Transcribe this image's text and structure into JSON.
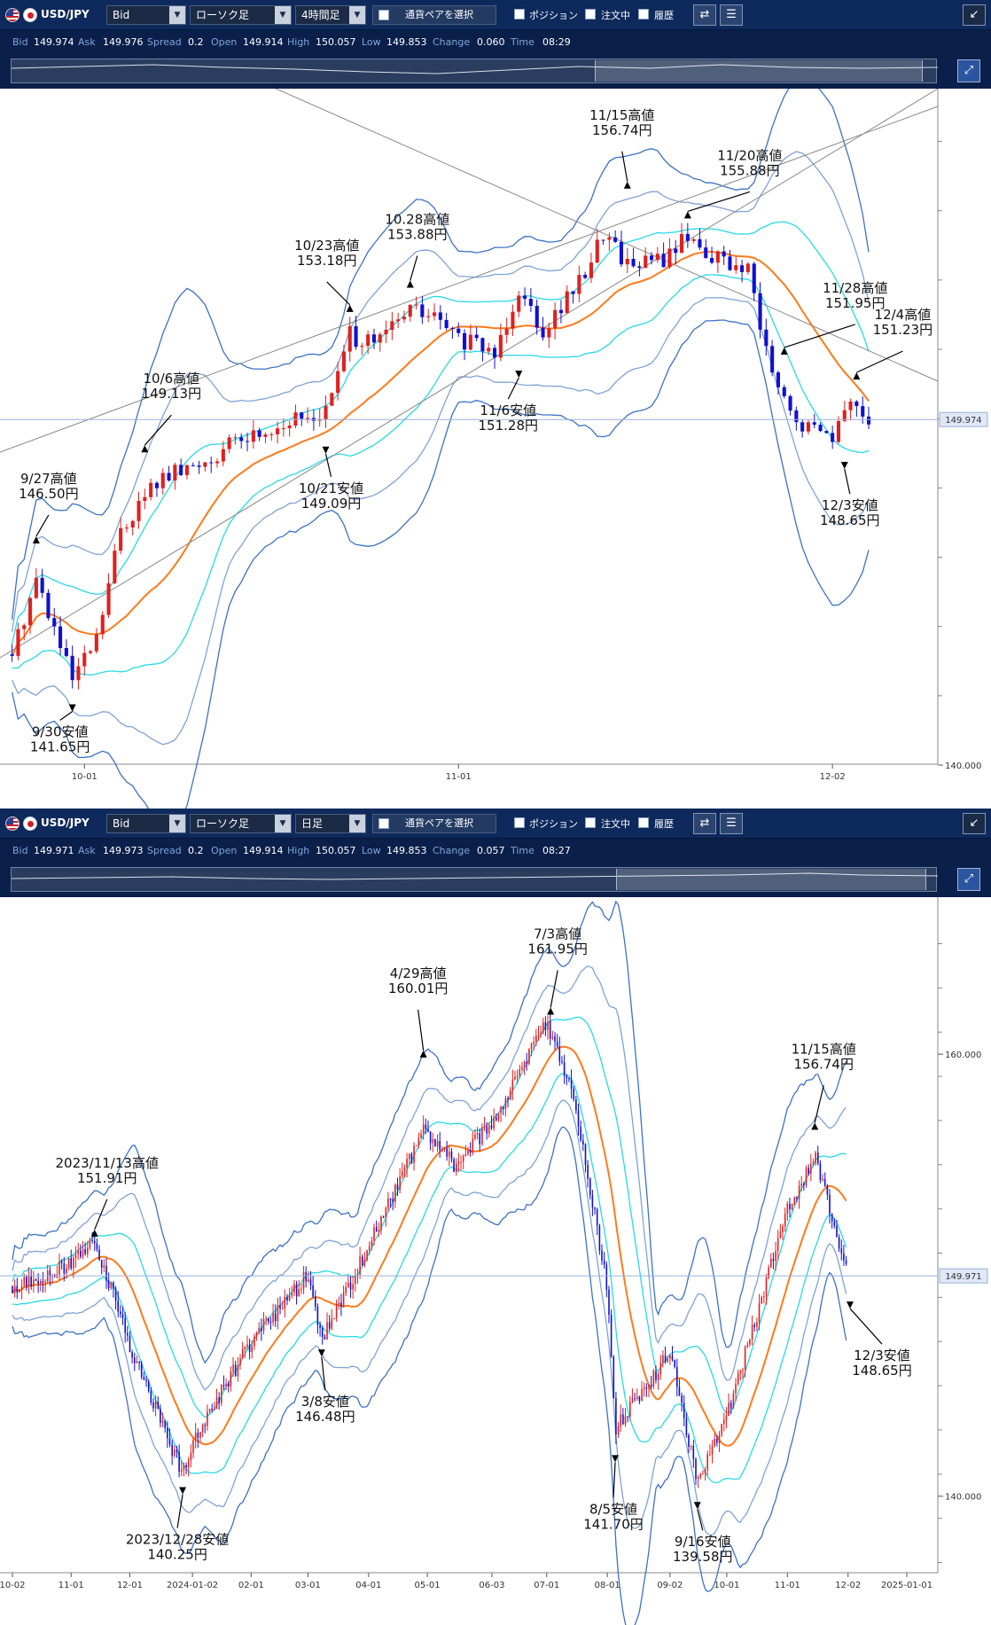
{
  "panels": [
    {
      "toolbar": {
        "pair": "USD/JPY",
        "price_type": "Bid",
        "chart_style": "ローソク足",
        "timeframe": "4時間足",
        "select_pair_label": "通貨ペアを選択",
        "position_label": "ポジション",
        "order_label": "注文中",
        "history_label": "履歴"
      },
      "quote": {
        "bid_label": "Bid",
        "bid": "149.974",
        "ask_label": "Ask",
        "ask": "149.976",
        "spread_label": "Spread",
        "spread": "0.2",
        "open_label": "Open",
        "open": "149.914",
        "high_label": "High",
        "high": "150.057",
        "low_label": "Low",
        "low": "149.853",
        "change_label": "Change",
        "change": "0.060",
        "time_label": "Time",
        "time": "08:29"
      },
      "current_price_label": "149.974",
      "chart_data": {
        "type": "candlestick",
        "title": "",
        "x_ticks": [
          "10-01",
          "11-01",
          "12-02"
        ],
        "y_ticks": [
          "140.000"
        ],
        "ylim": [
          140.0,
          158.5
        ],
        "overlays": [
          "20-period moving average",
          "Bollinger Bands ±1σ/±2σ/±3σ",
          "trend lines"
        ],
        "current_price": 149.974,
        "series_close_approx": [
          {
            "date": "09-25",
            "value": 143.2
          },
          {
            "date": "09-27",
            "value": 145.4
          },
          {
            "date": "09-30",
            "value": 142.4
          },
          {
            "date": "10-02",
            "value": 143.6
          },
          {
            "date": "10-04",
            "value": 146.8
          },
          {
            "date": "10-07",
            "value": 148.2
          },
          {
            "date": "10-10",
            "value": 148.6
          },
          {
            "date": "10-14",
            "value": 149.4
          },
          {
            "date": "10-17",
            "value": 149.8
          },
          {
            "date": "10-21",
            "value": 150.2
          },
          {
            "date": "10-23",
            "value": 152.4
          },
          {
            "date": "10-25",
            "value": 152.1
          },
          {
            "date": "10-28",
            "value": 153.2
          },
          {
            "date": "10-30",
            "value": 152.9
          },
          {
            "date": "11-01",
            "value": 152.3
          },
          {
            "date": "11-04",
            "value": 151.9
          },
          {
            "date": "11-06",
            "value": 153.8
          },
          {
            "date": "11-08",
            "value": 152.6
          },
          {
            "date": "11-11",
            "value": 153.9
          },
          {
            "date": "11-13",
            "value": 155.4
          },
          {
            "date": "11-15",
            "value": 154.5
          },
          {
            "date": "11-18",
            "value": 154.6
          },
          {
            "date": "11-20",
            "value": 155.3
          },
          {
            "date": "11-22",
            "value": 154.7
          },
          {
            "date": "11-25",
            "value": 154.2
          },
          {
            "date": "11-27",
            "value": 151.2
          },
          {
            "date": "11-29",
            "value": 149.8
          },
          {
            "date": "12-02",
            "value": 149.6
          },
          {
            "date": "12-04",
            "value": 150.6
          },
          {
            "date": "12-05",
            "value": 149.97
          }
        ],
        "annotations": [
          {
            "date": "09-27",
            "line1": "9/27高値",
            "line2": "146.50円",
            "value": 146.5
          },
          {
            "date": "09-30",
            "line1": "9/30安値",
            "line2": "141.65円",
            "value": 141.65
          },
          {
            "date": "10-06",
            "line1": "10/6高値",
            "line2": "149.13円",
            "value": 149.13
          },
          {
            "date": "10-21",
            "line1": "10/21安値",
            "line2": "149.09円",
            "value": 149.09
          },
          {
            "date": "10-23",
            "line1": "10/23高値",
            "line2": "153.18円",
            "value": 153.18
          },
          {
            "date": "10-28",
            "line1": "10.28高値",
            "line2": "153.88円",
            "value": 153.88
          },
          {
            "date": "11-06",
            "line1": "11/6安値",
            "line2": "151.28円",
            "value": 151.28
          },
          {
            "date": "11-15",
            "line1": "11/15高値",
            "line2": "156.74円",
            "value": 156.74
          },
          {
            "date": "11-20",
            "line1": "11/20高値",
            "line2": "155.88円",
            "value": 155.88
          },
          {
            "date": "11-28",
            "line1": "11/28高値",
            "line2": "151.95円",
            "value": 151.95
          },
          {
            "date": "12-03",
            "line1": "12/3安値",
            "line2": "148.65円",
            "value": 148.65
          },
          {
            "date": "12-04",
            "line1": "12/4高値",
            "line2": "151.23円",
            "value": 151.23
          }
        ],
        "colors": {
          "up": "#e02020",
          "down": "#1010d0",
          "ma": "#ff7a1a",
          "band1": "#27d9e6",
          "band2": "#7fa3d6",
          "band3": "#3b72c6",
          "trend": "#888888"
        }
      }
    },
    {
      "toolbar": {
        "pair": "USD/JPY",
        "price_type": "Bid",
        "chart_style": "ローソク足",
        "timeframe": "日足",
        "select_pair_label": "通貨ペアを選択",
        "position_label": "ポジション",
        "order_label": "注文中",
        "history_label": "履歴"
      },
      "quote": {
        "bid_label": "Bid",
        "bid": "149.971",
        "ask_label": "Ask",
        "ask": "149.973",
        "spread_label": "Spread",
        "spread": "0.2",
        "open_label": "Open",
        "open": "149.914",
        "high_label": "High",
        "high": "150.057",
        "low_label": "Low",
        "low": "149.853",
        "change_label": "Change",
        "change": "0.057",
        "time_label": "Time",
        "time": "08:27"
      },
      "current_price_label": "149.971",
      "chart_data": {
        "type": "candlestick",
        "title": "",
        "x_ticks": [
          "10-02",
          "11-01",
          "12-01",
          "2024-01-02",
          "02-01",
          "03-01",
          "04-01",
          "05-01",
          "06-03",
          "07-01",
          "08-01",
          "09-02",
          "10-01",
          "11-01",
          "12-02",
          "2025-01-01"
        ],
        "y_ticks": [
          "160.000",
          "140.000"
        ],
        "ylim": [
          136.5,
          165.5
        ],
        "overlays": [
          "20-period moving average",
          "Bollinger Bands ±1σ/±2σ/±3σ"
        ],
        "current_price": 149.971,
        "series_close_approx": [
          {
            "date": "2023-10-02",
            "value": 149.5
          },
          {
            "date": "2023-11-01",
            "value": 150.5
          },
          {
            "date": "2023-11-13",
            "value": 151.6
          },
          {
            "date": "2023-12-01",
            "value": 146.8
          },
          {
            "date": "2023-12-28",
            "value": 141.0
          },
          {
            "date": "2024-01-02",
            "value": 142.5
          },
          {
            "date": "2024-02-01",
            "value": 147.0
          },
          {
            "date": "2024-03-01",
            "value": 150.0
          },
          {
            "date": "2024-03-08",
            "value": 147.0
          },
          {
            "date": "2024-04-01",
            "value": 151.3
          },
          {
            "date": "2024-04-29",
            "value": 156.5
          },
          {
            "date": "2024-05-15",
            "value": 155.0
          },
          {
            "date": "2024-06-03",
            "value": 156.9
          },
          {
            "date": "2024-07-01",
            "value": 161.5
          },
          {
            "date": "2024-07-15",
            "value": 158.0
          },
          {
            "date": "2024-08-01",
            "value": 149.4
          },
          {
            "date": "2024-08-05",
            "value": 143.0
          },
          {
            "date": "2024-09-02",
            "value": 146.5
          },
          {
            "date": "2024-09-16",
            "value": 140.7
          },
          {
            "date": "2024-10-01",
            "value": 143.6
          },
          {
            "date": "2024-11-01",
            "value": 152.9
          },
          {
            "date": "2024-11-15",
            "value": 155.4
          },
          {
            "date": "2024-12-02",
            "value": 150.0
          }
        ],
        "annotations": [
          {
            "date": "2023-11-13",
            "line1": "2023/11/13高値",
            "line2": "151.91円",
            "value": 151.91
          },
          {
            "date": "2023-12-28",
            "line1": "2023/12/28安値",
            "line2": "140.25円",
            "value": 140.25
          },
          {
            "date": "2024-03-08",
            "line1": "3/8安値",
            "line2": "146.48円",
            "value": 146.48
          },
          {
            "date": "2024-04-29",
            "line1": "4/29高値",
            "line2": "160.01円",
            "value": 160.01
          },
          {
            "date": "2024-07-03",
            "line1": "7/3高値",
            "line2": "161.95円",
            "value": 161.95
          },
          {
            "date": "2024-08-05",
            "line1": "8/5安値",
            "line2": "141.70円",
            "value": 141.7
          },
          {
            "date": "2024-09-16",
            "line1": "9/16安値",
            "line2": "139.58円",
            "value": 139.58
          },
          {
            "date": "2024-11-15",
            "line1": "11/15高値",
            "line2": "156.74円",
            "value": 156.74
          },
          {
            "date": "2024-12-03",
            "line1": "12/3安値",
            "line2": "148.65円",
            "value": 148.65
          }
        ],
        "colors": {
          "up": "#e02020",
          "down": "#1010d0",
          "ma": "#ff7a1a",
          "band1": "#27d9e6",
          "band2": "#7fa3d6",
          "band3": "#3b72c6"
        }
      }
    }
  ]
}
